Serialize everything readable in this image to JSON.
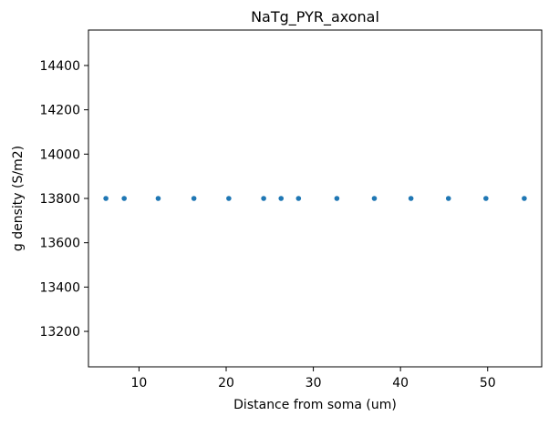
{
  "chart_data": {
    "type": "scatter",
    "title": "NaTg_PYR_axonal",
    "xlabel": "Distance from soma (um)",
    "ylabel": "g density (S/m2)",
    "xlim": [
      4.2,
      56.2
    ],
    "ylim": [
      13040,
      14560
    ],
    "xticks": [
      10,
      20,
      30,
      40,
      50
    ],
    "yticks": [
      13200,
      13400,
      13600,
      13800,
      14000,
      14200,
      14400
    ],
    "grid": false,
    "series": [
      {
        "color": "#1f77b4",
        "x": [
          6.2,
          8.3,
          12.2,
          16.3,
          20.3,
          24.3,
          26.3,
          28.3,
          32.7,
          37.0,
          41.2,
          45.5,
          49.8,
          54.2
        ],
        "y": [
          13800,
          13800,
          13800,
          13800,
          13800,
          13800,
          13800,
          13800,
          13800,
          13800,
          13800,
          13800,
          13800,
          13800
        ]
      }
    ]
  }
}
